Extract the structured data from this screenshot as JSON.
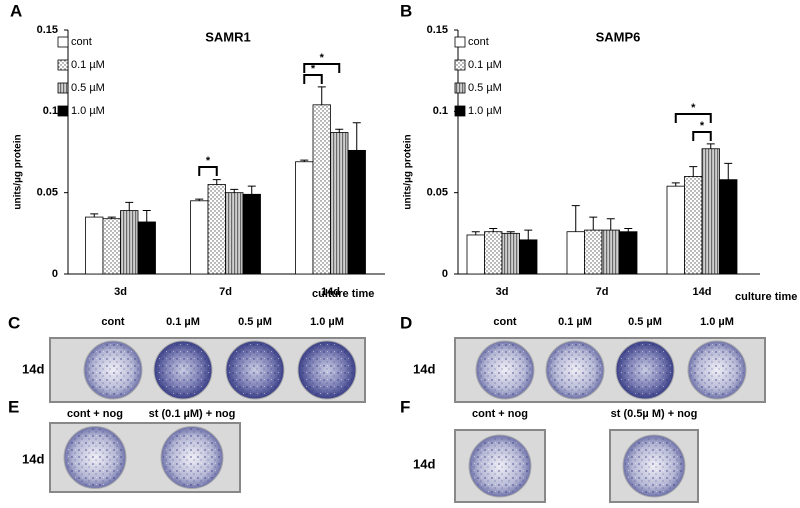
{
  "chart_data": [
    {
      "type": "bar",
      "title": "SAMR1",
      "y_label": "units/µg protein",
      "x_label": "culture time",
      "categories": [
        "3d",
        "7d",
        "14d"
      ],
      "series": [
        {
          "name": "cont",
          "color": "#ffffff",
          "values": [
            0.035,
            0.045,
            0.069
          ],
          "errors": [
            0.002,
            0.001,
            0.001
          ]
        },
        {
          "name": "0.1 µM",
          "color": "#d8d8d8",
          "values": [
            0.034,
            0.055,
            0.104
          ],
          "errors": [
            0.001,
            0.003,
            0.011
          ]
        },
        {
          "name": "0.5 µM",
          "color": "#9a9a9a",
          "values": [
            0.039,
            0.05,
            0.087
          ],
          "errors": [
            0.005,
            0.002,
            0.002
          ]
        },
        {
          "name": "1.0 µM",
          "color": "#000000",
          "values": [
            0.032,
            0.049,
            0.076
          ],
          "errors": [
            0.007,
            0.005,
            0.017
          ]
        }
      ],
      "ylim": [
        0,
        0.15
      ],
      "yticks": [
        0,
        0.05,
        0.1,
        0.15
      ],
      "annotations": [
        "*",
        "*",
        "*"
      ]
    },
    {
      "type": "bar",
      "title": "SAMP6",
      "y_label": "units/µg protein",
      "x_label": "culture time",
      "categories": [
        "3d",
        "7d",
        "14d"
      ],
      "series": [
        {
          "name": "cont",
          "color": "#ffffff",
          "values": [
            0.024,
            0.026,
            0.054
          ],
          "errors": [
            0.002,
            0.016,
            0.002
          ]
        },
        {
          "name": "0.1 µM",
          "color": "#d8d8d8",
          "values": [
            0.026,
            0.027,
            0.06
          ],
          "errors": [
            0.002,
            0.008,
            0.006
          ]
        },
        {
          "name": "0.5 µM",
          "color": "#9a9a9a",
          "values": [
            0.025,
            0.027,
            0.077
          ],
          "errors": [
            0.001,
            0.007,
            0.003
          ]
        },
        {
          "name": "1.0 µM",
          "color": "#000000",
          "values": [
            0.021,
            0.026,
            0.058
          ],
          "errors": [
            0.006,
            0.002,
            0.01
          ]
        }
      ],
      "ylim": [
        0,
        0.15
      ],
      "yticks": [
        0,
        0.05,
        0.1,
        0.15
      ],
      "annotations": [
        "*",
        "*"
      ]
    }
  ],
  "panel_labels": [
    "A",
    "B",
    "C",
    "D",
    "E",
    "F"
  ],
  "photos": [
    {
      "columns": [
        "cont",
        "0.1 µM",
        "0.5 µM",
        "1.0 µM"
      ],
      "row": "14d"
    },
    {
      "columns": [
        "cont",
        "0.1 µM",
        "0.5 µM",
        "1.0 µM"
      ],
      "row": "14d"
    },
    {
      "columns": [
        "cont + nog",
        "st (0.1 µM) + nog"
      ],
      "row": "14d"
    },
    {
      "columns": [
        "cont + nog",
        "st (0.5µ M) + nog"
      ],
      "row": "14d"
    }
  ]
}
